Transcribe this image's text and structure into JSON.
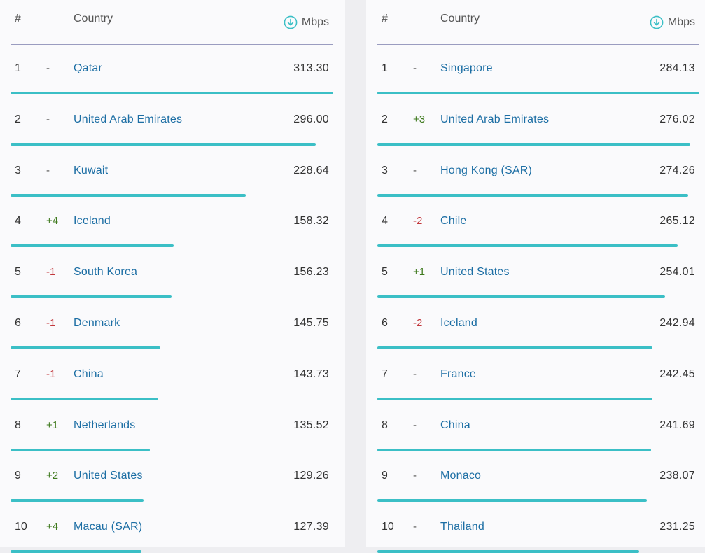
{
  "tables": [
    {
      "header": {
        "rank": "#",
        "country": "Country",
        "unit": "Mbps",
        "unit_icon": "download-arrow-circle-icon"
      },
      "max_value": 313.3,
      "rows": [
        {
          "rank": "1",
          "change": "-",
          "country": "Qatar",
          "value": "313.30"
        },
        {
          "rank": "2",
          "change": "-",
          "country": "United Arab Emirates",
          "value": "296.00"
        },
        {
          "rank": "3",
          "change": "-",
          "country": "Kuwait",
          "value": "228.64"
        },
        {
          "rank": "4",
          "change": "+4",
          "country": "Iceland",
          "value": "158.32"
        },
        {
          "rank": "5",
          "change": "-1",
          "country": "South Korea",
          "value": "156.23"
        },
        {
          "rank": "6",
          "change": "-1",
          "country": "Denmark",
          "value": "145.75"
        },
        {
          "rank": "7",
          "change": "-1",
          "country": "China",
          "value": "143.73"
        },
        {
          "rank": "8",
          "change": "+1",
          "country": "Netherlands",
          "value": "135.52"
        },
        {
          "rank": "9",
          "change": "+2",
          "country": "United States",
          "value": "129.26"
        },
        {
          "rank": "10",
          "change": "+4",
          "country": "Macau (SAR)",
          "value": "127.39"
        }
      ]
    },
    {
      "header": {
        "rank": "#",
        "country": "Country",
        "unit": "Mbps",
        "unit_icon": "download-arrow-circle-icon"
      },
      "max_value": 284.13,
      "rows": [
        {
          "rank": "1",
          "change": "-",
          "country": "Singapore",
          "value": "284.13"
        },
        {
          "rank": "2",
          "change": "+3",
          "country": "United Arab Emirates",
          "value": "276.02"
        },
        {
          "rank": "3",
          "change": "-",
          "country": "Hong Kong (SAR)",
          "value": "274.26"
        },
        {
          "rank": "4",
          "change": "-2",
          "country": "Chile",
          "value": "265.12"
        },
        {
          "rank": "5",
          "change": "+1",
          "country": "United States",
          "value": "254.01"
        },
        {
          "rank": "6",
          "change": "-2",
          "country": "Iceland",
          "value": "242.94"
        },
        {
          "rank": "7",
          "change": "-",
          "country": "France",
          "value": "242.45"
        },
        {
          "rank": "8",
          "change": "-",
          "country": "China",
          "value": "241.69"
        },
        {
          "rank": "9",
          "change": "-",
          "country": "Monaco",
          "value": "238.07"
        },
        {
          "rank": "10",
          "change": "-",
          "country": "Thailand",
          "value": "231.25"
        }
      ]
    }
  ],
  "colors": {
    "bar": "#3bbfc6",
    "country_link": "#1c6ea4",
    "change_up": "#3f7a1e",
    "change_down": "#c2383d",
    "header_rule": "#9a9cc0"
  }
}
